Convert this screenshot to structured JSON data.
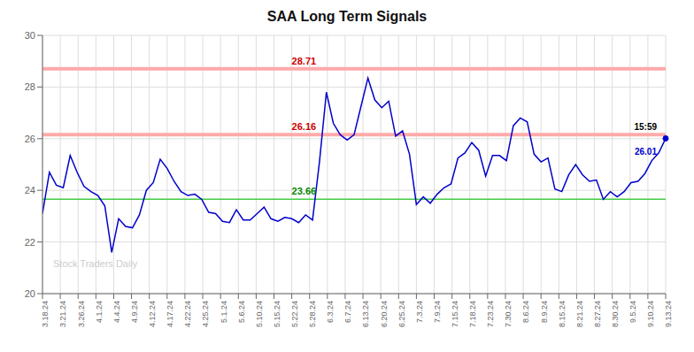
{
  "chart_data": {
    "type": "line",
    "title": "SAA Long Term Signals",
    "x": [
      0,
      0.388888888889,
      0.777777777778,
      1.166666666667,
      1.555555555556,
      1.944444444444,
      2.333333333333,
      2.722222222222,
      3.111111111111,
      3.5,
      3.888888888889,
      4.277777777778,
      4.666666666667,
      5.055555555556,
      5.444444444444,
      5.833333333333,
      6.222222222222,
      6.611111111111,
      7,
      7.388888888889,
      7.777777777778,
      8.166666666667,
      8.555555555556,
      8.944444444444,
      9.333333333333,
      9.722222222222,
      10.111111111111,
      10.5,
      10.888888888889,
      11.277777777778,
      11.666666666667,
      12.055555555556,
      12.444444444444,
      12.833333333333,
      13.222222222222,
      13.611111111111,
      14,
      14.388888888889,
      14.777777777778,
      15.166666666667,
      15.555555555556,
      15.944444444444,
      16.333333333333,
      16.722222222222,
      17.111111111111,
      17.5,
      17.888888888889,
      18.277777777778,
      18.666666666667,
      19.055555555556,
      19.444444444444,
      19.833333333333,
      20.222222222222,
      20.611111111111,
      21,
      21.388888888889,
      21.777777777778,
      22.166666666667,
      22.555555555556,
      22.944444444444,
      23.333333333333,
      23.722222222222,
      24.111111111111,
      24.5,
      24.888888888889,
      25.277777777778,
      25.666666666667,
      26.055555555556,
      26.444444444444,
      26.833333333333,
      27.222222222222,
      27.611111111111,
      28,
      28.388888888889,
      28.777777777778,
      29.166666666667,
      29.555555555556,
      29.944444444444,
      30.333333333333,
      30.722222222222,
      31.111111111111,
      31.5,
      31.888888888889,
      32.277777777778,
      32.666666666667,
      33.055555555556,
      33.444444444444,
      33.833333333333,
      34.222222222222,
      34.611111111111,
      35
    ],
    "values": [
      23.1,
      24.7,
      24.2,
      24.1,
      25.35,
      24.7,
      24.15,
      23.95,
      23.8,
      23.4,
      21.6,
      22.9,
      22.6,
      22.55,
      23.05,
      24.0,
      24.3,
      25.2,
      24.85,
      24.35,
      23.95,
      23.8,
      23.85,
      23.65,
      23.15,
      23.1,
      22.8,
      22.75,
      23.25,
      22.85,
      22.85,
      23.1,
      23.35,
      22.9,
      22.8,
      22.95,
      22.9,
      22.75,
      23.05,
      22.85,
      25.1,
      27.8,
      26.6,
      26.15,
      25.95,
      26.15,
      27.25,
      28.35,
      27.5,
      27.2,
      27.45,
      26.1,
      26.3,
      25.4,
      23.45,
      23.75,
      23.5,
      23.85,
      24.1,
      24.25,
      25.25,
      25.45,
      25.85,
      25.55,
      24.55,
      25.35,
      25.35,
      25.15,
      26.5,
      26.8,
      26.65,
      25.4,
      25.1,
      25.25,
      24.05,
      23.95,
      24.6,
      25.0,
      24.6,
      24.35,
      24.4,
      23.65,
      23.95,
      23.75,
      23.95,
      24.3,
      24.35,
      24.65,
      25.15,
      25.45,
      26.01
    ],
    "color": "#0000cc",
    "xlim": [
      0,
      35
    ],
    "xticks": [
      {
        "value": 0,
        "label": "3.18.24"
      },
      {
        "value": 1,
        "label": "3.21.24"
      },
      {
        "value": 2,
        "label": "3.26.24"
      },
      {
        "value": 3,
        "label": "4.1.24"
      },
      {
        "value": 4,
        "label": "4.4.24"
      },
      {
        "value": 5,
        "label": "4.9.24"
      },
      {
        "value": 6,
        "label": "4.12.24"
      },
      {
        "value": 7,
        "label": "4.17.24"
      },
      {
        "value": 8,
        "label": "4.22.24"
      },
      {
        "value": 9,
        "label": "4.25.24"
      },
      {
        "value": 10,
        "label": "5.1.24"
      },
      {
        "value": 11,
        "label": "5.6.24"
      },
      {
        "value": 12,
        "label": "5.10.24"
      },
      {
        "value": 13,
        "label": "5.15.24"
      },
      {
        "value": 14,
        "label": "5.22.24"
      },
      {
        "value": 15,
        "label": "5.28.24"
      },
      {
        "value": 16,
        "label": "6.3.24"
      },
      {
        "value": 17,
        "label": "6.7.24"
      },
      {
        "value": 18,
        "label": "6.13.24"
      },
      {
        "value": 19,
        "label": "6.20.24"
      },
      {
        "value": 20,
        "label": "6.25.24"
      },
      {
        "value": 21,
        "label": "7.3.24"
      },
      {
        "value": 22,
        "label": "7.9.24"
      },
      {
        "value": 23,
        "label": "7.15.24"
      },
      {
        "value": 24,
        "label": "7.18.24"
      },
      {
        "value": 25,
        "label": "7.23.24"
      },
      {
        "value": 26,
        "label": "7.30.24"
      },
      {
        "value": 27,
        "label": "8.6.24"
      },
      {
        "value": 28,
        "label": "8.9.24"
      },
      {
        "value": 29,
        "label": "8.15.24"
      },
      {
        "value": 30,
        "label": "8.21.24"
      },
      {
        "value": 31,
        "label": "8.27.24"
      },
      {
        "value": 32,
        "label": "8.30.24"
      },
      {
        "value": 33,
        "label": "9.5.24"
      },
      {
        "value": 34,
        "label": "9.10.24"
      },
      {
        "value": 35,
        "label": "9.13.24"
      }
    ],
    "ylim": [
      20,
      30
    ],
    "yticks": [
      20,
      22,
      24,
      26,
      28,
      30
    ],
    "grid": true,
    "hlines": [
      {
        "value": 28.71,
        "color": "#ffaaaa",
        "line_style": "thick",
        "label": "28.71",
        "label_color": "#cc0000"
      },
      {
        "value": 26.16,
        "color": "#ffaaaa",
        "line_style": "thick",
        "label": "26.16",
        "label_color": "#cc0000"
      },
      {
        "value": 23.66,
        "color": "#44cc44",
        "line_style": "thin",
        "label": "23.66",
        "label_color": "#008800"
      }
    ],
    "annotations": [
      {
        "text": "15:59",
        "color": "#000000"
      },
      {
        "text": "26.01",
        "color": "#0000cc"
      }
    ],
    "watermark": {
      "text": "Stock Traders Daily",
      "color": "#cccccc"
    }
  }
}
